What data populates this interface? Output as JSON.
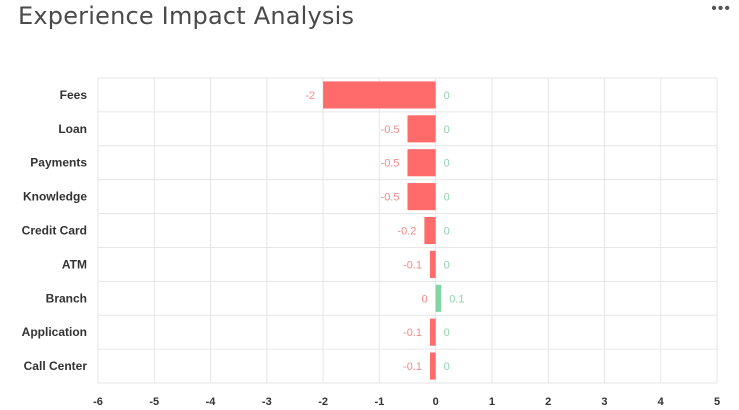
{
  "header": {
    "title": "Experience Impact Analysis",
    "menu_icon": "more-horizontal-icon",
    "menu_label": "•••"
  },
  "colors": {
    "negative": "#ff6b6b",
    "positive": "#7fd6a2",
    "negative_label": "#f08a8a",
    "positive_label": "#8fd3aa",
    "grid": "#e6e6e6"
  },
  "chart_data": {
    "type": "bar",
    "orientation": "horizontal",
    "title": "Experience Impact Analysis",
    "xlabel": "",
    "ylabel": "",
    "xlim": [
      -6,
      5
    ],
    "xticks": [
      -6,
      -5,
      -4,
      -3,
      -2,
      -1,
      0,
      1,
      2,
      3,
      4,
      5
    ],
    "grid": true,
    "legend": "none",
    "categories": [
      "Fees",
      "Loan",
      "Payments",
      "Knowledge",
      "Credit Card",
      "ATM",
      "Branch",
      "Application",
      "Call Center"
    ],
    "series": [
      {
        "values": [
          -2,
          -0.5,
          -0.5,
          -0.5,
          -0.2,
          -0.1,
          0,
          -0.1,
          -0.1
        ]
      },
      {
        "values": [
          0,
          0,
          0,
          0,
          0,
          0,
          0.1,
          0,
          0
        ]
      }
    ]
  }
}
